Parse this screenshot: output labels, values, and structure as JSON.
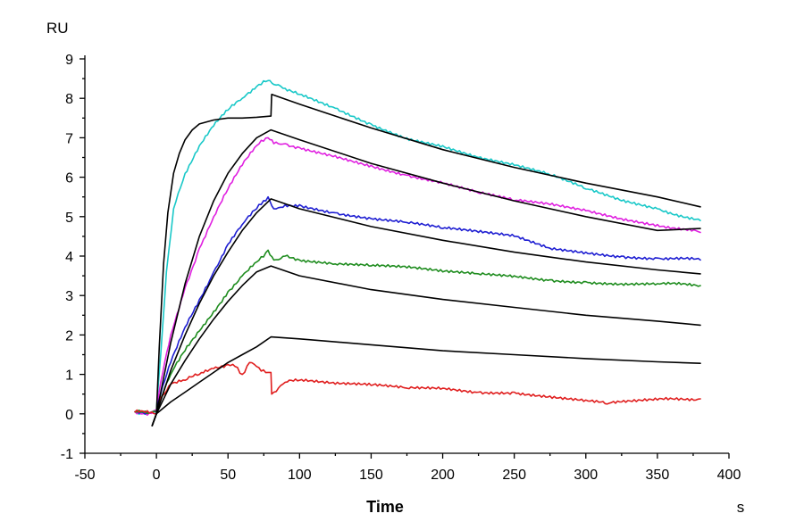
{
  "chart_data": {
    "type": "line",
    "xlabel": "Time",
    "x_unit": "s",
    "y_unit": "RU",
    "xlim": [
      -50,
      400
    ],
    "ylim": [
      -1,
      9
    ],
    "x_ticks": [
      -50,
      0,
      50,
      100,
      150,
      200,
      250,
      300,
      350,
      400
    ],
    "x_tick_labels": [
      "-50",
      "0",
      "50",
      "100",
      "150",
      "200",
      "250",
      "300",
      "350",
      "400"
    ],
    "y_ticks": [
      -1,
      0,
      1,
      2,
      3,
      4,
      5,
      6,
      7,
      8,
      9
    ],
    "y_tick_labels": [
      "-1",
      "0",
      "1",
      "2",
      "3",
      "4",
      "5",
      "6",
      "7",
      "8",
      "9"
    ],
    "grid": false,
    "legend": "none",
    "colors": {
      "cyan": "#19C8C8",
      "magenta": "#E020E0",
      "blue": "#1E1ED2",
      "green": "#1E8C1E",
      "red": "#E01E1E",
      "fit": "#000000"
    },
    "series": [
      {
        "color": "#19C8C8",
        "kind": "measured",
        "x": [
          -15,
          -5,
          0,
          3,
          7,
          12,
          20,
          30,
          40,
          50,
          60,
          70,
          78,
          82,
          90,
          100,
          125,
          150,
          175,
          200,
          225,
          250,
          275,
          300,
          325,
          350,
          380
        ],
        "y": [
          0.05,
          0.02,
          0.1,
          1.5,
          3.6,
          5.2,
          6.1,
          6.8,
          7.3,
          7.7,
          8.0,
          8.3,
          8.45,
          8.35,
          8.25,
          8.1,
          7.75,
          7.35,
          7.0,
          6.8,
          6.5,
          6.3,
          6.05,
          5.7,
          5.4,
          5.2,
          4.9
        ]
      },
      {
        "color": "#E020E0",
        "kind": "measured",
        "x": [
          -15,
          -5,
          0,
          3,
          10,
          20,
          30,
          40,
          50,
          60,
          70,
          78,
          82,
          90,
          100,
          125,
          150,
          175,
          200,
          225,
          250,
          275,
          300,
          325,
          350,
          380
        ],
        "y": [
          0.05,
          0.02,
          0.1,
          0.8,
          2.0,
          3.2,
          4.2,
          5.0,
          5.7,
          6.3,
          6.8,
          7.0,
          6.85,
          6.85,
          6.75,
          6.55,
          6.3,
          6.05,
          5.85,
          5.6,
          5.4,
          5.3,
          5.15,
          4.95,
          4.8,
          4.6
        ]
      },
      {
        "color": "#1E1ED2",
        "kind": "measured",
        "x": [
          -15,
          -5,
          0,
          3,
          10,
          20,
          30,
          40,
          50,
          60,
          70,
          78,
          82,
          90,
          100,
          125,
          150,
          175,
          200,
          225,
          250,
          275,
          300,
          325,
          350,
          380
        ],
        "y": [
          0.05,
          0.02,
          0.05,
          0.5,
          1.3,
          2.2,
          2.9,
          3.6,
          4.3,
          4.8,
          5.2,
          5.5,
          5.2,
          5.3,
          5.3,
          5.1,
          4.95,
          4.85,
          4.7,
          4.6,
          4.5,
          4.2,
          4.1,
          4.0,
          3.95,
          3.9
        ]
      },
      {
        "color": "#1E8C1E",
        "kind": "measured",
        "x": [
          -15,
          -5,
          0,
          3,
          10,
          20,
          30,
          40,
          50,
          60,
          70,
          78,
          82,
          90,
          100,
          125,
          150,
          175,
          200,
          225,
          250,
          275,
          300,
          325,
          350,
          380
        ],
        "y": [
          0.05,
          0.02,
          0.05,
          0.4,
          1.0,
          1.6,
          2.1,
          2.6,
          3.1,
          3.5,
          3.85,
          4.15,
          3.9,
          4.0,
          3.9,
          3.8,
          3.75,
          3.7,
          3.6,
          3.55,
          3.5,
          3.4,
          3.35,
          3.3,
          3.3,
          3.25
        ]
      },
      {
        "color": "#E01E1E",
        "kind": "measured",
        "x": [
          -15,
          -5,
          0,
          3,
          10,
          20,
          30,
          40,
          50,
          55,
          60,
          65,
          70,
          78,
          80,
          80.5,
          90,
          100,
          125,
          150,
          175,
          200,
          225,
          250,
          275,
          300,
          315,
          325,
          350,
          380
        ],
        "y": [
          0.05,
          0.02,
          0.0,
          0.4,
          0.75,
          0.85,
          1.0,
          1.15,
          1.25,
          1.2,
          1.0,
          1.3,
          1.2,
          1.05,
          1.05,
          0.5,
          0.8,
          0.85,
          0.75,
          0.72,
          0.65,
          0.65,
          0.55,
          0.55,
          0.45,
          0.35,
          0.25,
          0.3,
          0.35,
          0.38
        ]
      },
      {
        "color": "#000000",
        "kind": "fit",
        "x": [
          -3,
          0,
          2,
          5,
          8,
          12,
          16,
          20,
          25,
          30,
          40,
          50,
          60,
          70,
          80,
          80.5,
          100,
          150,
          200,
          250,
          300,
          350,
          380
        ],
        "y": [
          -0.3,
          0.0,
          1.7,
          3.8,
          5.1,
          6.1,
          6.6,
          6.95,
          7.2,
          7.35,
          7.45,
          7.5,
          7.5,
          7.52,
          7.55,
          8.1,
          7.85,
          7.25,
          6.7,
          6.25,
          5.85,
          5.5,
          5.25
        ]
      },
      {
        "color": "#000000",
        "kind": "fit",
        "x": [
          -3,
          0,
          5,
          10,
          20,
          30,
          40,
          50,
          60,
          70,
          80,
          100,
          150,
          200,
          250,
          300,
          350,
          380
        ],
        "y": [
          -0.3,
          0.0,
          0.9,
          1.8,
          3.3,
          4.5,
          5.4,
          6.1,
          6.6,
          7.0,
          7.2,
          6.95,
          6.35,
          5.85,
          5.4,
          5.0,
          4.65,
          4.7
        ]
      },
      {
        "color": "#000000",
        "kind": "fit",
        "x": [
          -3,
          0,
          10,
          20,
          30,
          40,
          50,
          60,
          70,
          80,
          100,
          150,
          200,
          250,
          300,
          350,
          380
        ],
        "y": [
          -0.3,
          0.0,
          1.1,
          2.0,
          2.8,
          3.5,
          4.1,
          4.65,
          5.1,
          5.45,
          5.2,
          4.75,
          4.4,
          4.1,
          3.85,
          3.65,
          3.55
        ]
      },
      {
        "color": "#000000",
        "kind": "fit",
        "x": [
          -3,
          0,
          10,
          20,
          30,
          40,
          50,
          60,
          70,
          80,
          100,
          150,
          200,
          250,
          300,
          350,
          380
        ],
        "y": [
          -0.3,
          0.0,
          0.75,
          1.35,
          1.9,
          2.4,
          2.85,
          3.25,
          3.6,
          3.75,
          3.5,
          3.15,
          2.9,
          2.7,
          2.5,
          2.35,
          2.25
        ]
      },
      {
        "color": "#000000",
        "kind": "fit",
        "x": [
          -3,
          0,
          10,
          20,
          30,
          40,
          50,
          60,
          70,
          80,
          100,
          150,
          200,
          250,
          300,
          350,
          380
        ],
        "y": [
          -0.3,
          0.0,
          0.3,
          0.55,
          0.8,
          1.05,
          1.3,
          1.5,
          1.7,
          1.95,
          1.9,
          1.75,
          1.6,
          1.5,
          1.4,
          1.32,
          1.28
        ]
      }
    ]
  }
}
